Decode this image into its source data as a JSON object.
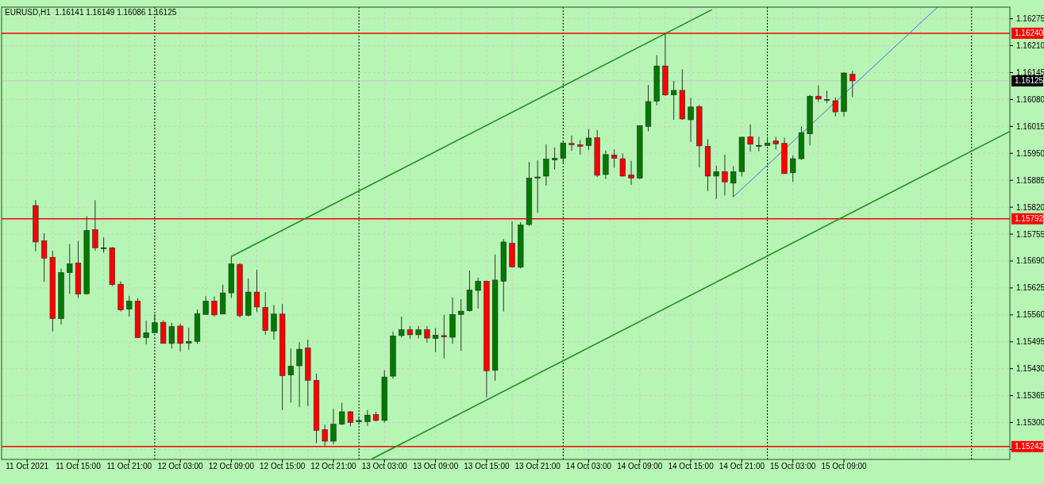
{
  "chart_data": {
    "type": "candlestick",
    "title": "EURUSD,H1  1.16141 1.16149 1.16086 1.16125",
    "x": [
      "2021-10-11T10:00",
      "2021-10-11T11:00",
      "2021-10-11T12:00",
      "2021-10-11T13:00",
      "2021-10-11T14:00",
      "2021-10-11T15:00",
      "2021-10-11T16:00",
      "2021-10-11T17:00",
      "2021-10-11T18:00",
      "2021-10-11T19:00",
      "2021-10-11T20:00",
      "2021-10-11T21:00",
      "2021-10-11T22:00",
      "2021-10-11T23:00",
      "2021-10-12T00:00",
      "2021-10-12T01:00",
      "2021-10-12T02:00",
      "2021-10-12T03:00",
      "2021-10-12T04:00",
      "2021-10-12T05:00",
      "2021-10-12T06:00",
      "2021-10-12T07:00",
      "2021-10-12T08:00",
      "2021-10-12T09:00",
      "2021-10-12T10:00",
      "2021-10-12T11:00",
      "2021-10-12T12:00",
      "2021-10-12T13:00",
      "2021-10-12T14:00",
      "2021-10-12T15:00",
      "2021-10-12T16:00",
      "2021-10-12T17:00",
      "2021-10-12T18:00",
      "2021-10-12T19:00",
      "2021-10-12T20:00",
      "2021-10-12T21:00",
      "2021-10-12T22:00",
      "2021-10-12T23:00",
      "2021-10-13T00:00",
      "2021-10-13T01:00",
      "2021-10-13T02:00",
      "2021-10-13T03:00",
      "2021-10-13T04:00",
      "2021-10-13T05:00",
      "2021-10-13T06:00",
      "2021-10-13T07:00",
      "2021-10-13T08:00",
      "2021-10-13T09:00",
      "2021-10-13T10:00",
      "2021-10-13T11:00",
      "2021-10-13T12:00",
      "2021-10-13T13:00",
      "2021-10-13T14:00",
      "2021-10-13T15:00",
      "2021-10-13T16:00",
      "2021-10-13T17:00",
      "2021-10-13T18:00",
      "2021-10-13T19:00",
      "2021-10-13T20:00",
      "2021-10-13T21:00",
      "2021-10-13T22:00",
      "2021-10-13T23:00",
      "2021-10-14T00:00",
      "2021-10-14T01:00",
      "2021-10-14T02:00",
      "2021-10-14T03:00",
      "2021-10-14T04:00",
      "2021-10-14T05:00",
      "2021-10-14T06:00",
      "2021-10-14T07:00",
      "2021-10-14T08:00",
      "2021-10-14T09:00",
      "2021-10-14T10:00",
      "2021-10-14T11:00",
      "2021-10-14T12:00",
      "2021-10-14T13:00",
      "2021-10-14T14:00",
      "2021-10-14T15:00",
      "2021-10-14T16:00",
      "2021-10-14T17:00",
      "2021-10-14T18:00",
      "2021-10-14T19:00",
      "2021-10-14T20:00",
      "2021-10-14T21:00",
      "2021-10-14T22:00",
      "2021-10-14T23:00",
      "2021-10-15T00:00",
      "2021-10-15T01:00",
      "2021-10-15T02:00",
      "2021-10-15T03:00",
      "2021-10-15T04:00",
      "2021-10-15T05:00",
      "2021-10-15T06:00",
      "2021-10-15T07:00",
      "2021-10-15T08:00",
      "2021-10-15T09:00",
      "2021-10-15T10:00"
    ],
    "ohlc": [
      [
        1.15824,
        1.15837,
        1.15713,
        1.15736
      ],
      [
        1.15739,
        1.15757,
        1.1564,
        1.15697
      ],
      [
        1.15699,
        1.15715,
        1.1552,
        1.15551
      ],
      [
        1.15551,
        1.15672,
        1.15537,
        1.15662
      ],
      [
        1.15662,
        1.15731,
        1.15611,
        1.15683
      ],
      [
        1.15685,
        1.15739,
        1.15601,
        1.1561
      ],
      [
        1.15611,
        1.15798,
        1.15609,
        1.15764
      ],
      [
        1.15766,
        1.15837,
        1.15715,
        1.15722
      ],
      [
        1.15722,
        1.15747,
        1.1571,
        1.15722
      ],
      [
        1.15722,
        1.15724,
        1.1563,
        1.15633
      ],
      [
        1.15634,
        1.15641,
        1.15568,
        1.15572
      ],
      [
        1.15574,
        1.15606,
        1.15556,
        1.15593
      ],
      [
        1.15593,
        1.156,
        1.15505,
        1.15505
      ],
      [
        1.15505,
        1.15546,
        1.15489,
        1.15517
      ],
      [
        1.15517,
        1.15562,
        1.15517,
        1.15541
      ],
      [
        1.15542,
        1.15547,
        1.15491,
        1.15491
      ],
      [
        1.15491,
        1.15541,
        1.15479,
        1.15532
      ],
      [
        1.15533,
        1.15539,
        1.15471,
        1.15491
      ],
      [
        1.15492,
        1.15529,
        1.15476,
        1.15496
      ],
      [
        1.15496,
        1.15573,
        1.1549,
        1.15563
      ],
      [
        1.15561,
        1.15605,
        1.15561,
        1.15593
      ],
      [
        1.15593,
        1.15604,
        1.15556,
        1.1556
      ],
      [
        1.15562,
        1.15633,
        1.15562,
        1.15613
      ],
      [
        1.15613,
        1.15701,
        1.15601,
        1.15683
      ],
      [
        1.15682,
        1.15685,
        1.15554,
        1.15558
      ],
      [
        1.15559,
        1.15648,
        1.15556,
        1.15615
      ],
      [
        1.15615,
        1.15669,
        1.15567,
        1.15579
      ],
      [
        1.15578,
        1.15615,
        1.15512,
        1.15522
      ],
      [
        1.15521,
        1.15584,
        1.155,
        1.15562
      ],
      [
        1.15562,
        1.15586,
        1.1533,
        1.15413
      ],
      [
        1.15415,
        1.15479,
        1.15348,
        1.15436
      ],
      [
        1.15437,
        1.15494,
        1.15337,
        1.15477
      ],
      [
        1.1548,
        1.155,
        1.1534,
        1.15402
      ],
      [
        1.15402,
        1.15418,
        1.1525,
        1.15281
      ],
      [
        1.15283,
        1.15295,
        1.15244,
        1.15255
      ],
      [
        1.15255,
        1.15333,
        1.15247,
        1.15296
      ],
      [
        1.15296,
        1.15348,
        1.15294,
        1.15326
      ],
      [
        1.15326,
        1.15328,
        1.15291,
        1.153
      ],
      [
        1.15302,
        1.15314,
        1.15299,
        1.15305
      ],
      [
        1.15302,
        1.1533,
        1.15292,
        1.15318
      ],
      [
        1.15319,
        1.15326,
        1.15303,
        1.15305
      ],
      [
        1.15305,
        1.15426,
        1.153,
        1.1541
      ],
      [
        1.15412,
        1.1552,
        1.15406,
        1.15509
      ],
      [
        1.1551,
        1.15556,
        1.15505,
        1.15524
      ],
      [
        1.15524,
        1.15533,
        1.15502,
        1.15512
      ],
      [
        1.15512,
        1.15533,
        1.15503,
        1.15524
      ],
      [
        1.15524,
        1.15533,
        1.15493,
        1.15504
      ],
      [
        1.15503,
        1.15528,
        1.1547,
        1.15511
      ],
      [
        1.1551,
        1.1556,
        1.15455,
        1.15507
      ],
      [
        1.15506,
        1.15602,
        1.1549,
        1.15561
      ],
      [
        1.15561,
        1.15598,
        1.15473,
        1.15569
      ],
      [
        1.1557,
        1.15667,
        1.15568,
        1.1562
      ],
      [
        1.15619,
        1.1565,
        1.15575,
        1.15641
      ],
      [
        1.15641,
        1.15643,
        1.15361,
        1.15425
      ],
      [
        1.15426,
        1.15706,
        1.15401,
        1.15644
      ],
      [
        1.15641,
        1.15743,
        1.15568,
        1.15736
      ],
      [
        1.15733,
        1.15786,
        1.15674,
        1.15676
      ],
      [
        1.15675,
        1.15784,
        1.15672,
        1.15777
      ],
      [
        1.15778,
        1.15929,
        1.15775,
        1.1589
      ],
      [
        1.1589,
        1.15933,
        1.15807,
        1.15893
      ],
      [
        1.15895,
        1.15972,
        1.15872,
        1.15936
      ],
      [
        1.15934,
        1.15964,
        1.15911,
        1.15938
      ],
      [
        1.15938,
        1.1598,
        1.15927,
        1.15975
      ],
      [
        1.15974,
        1.15993,
        1.15956,
        1.15971
      ],
      [
        1.15971,
        1.15982,
        1.15947,
        1.15967
      ],
      [
        1.15969,
        1.16009,
        1.15958,
        1.15987
      ],
      [
        1.15988,
        1.16006,
        1.15893,
        1.15897
      ],
      [
        1.15899,
        1.15957,
        1.15888,
        1.15947
      ],
      [
        1.15946,
        1.1596,
        1.15915,
        1.15938
      ],
      [
        1.15937,
        1.1595,
        1.15894,
        1.15895
      ],
      [
        1.15898,
        1.15932,
        1.15874,
        1.1589
      ],
      [
        1.1589,
        1.16018,
        1.15888,
        1.16017
      ],
      [
        1.16015,
        1.16115,
        1.16003,
        1.16075
      ],
      [
        1.16076,
        1.16187,
        1.16066,
        1.16161
      ],
      [
        1.16161,
        1.1624,
        1.16089,
        1.16091
      ],
      [
        1.16091,
        1.16125,
        1.16031,
        1.16102
      ],
      [
        1.16102,
        1.16153,
        1.16031,
        1.16033
      ],
      [
        1.16031,
        1.16084,
        1.15978,
        1.16062
      ],
      [
        1.16063,
        1.16067,
        1.15916,
        1.15968
      ],
      [
        1.15967,
        1.15984,
        1.15859,
        1.15895
      ],
      [
        1.15895,
        1.1592,
        1.1584,
        1.15906
      ],
      [
        1.15906,
        1.15947,
        1.15848,
        1.15881
      ],
      [
        1.15878,
        1.15919,
        1.15845,
        1.15906
      ],
      [
        1.15906,
        1.1599,
        1.15894,
        1.15989
      ],
      [
        1.1599,
        1.1602,
        1.15954,
        1.15972
      ],
      [
        1.15969,
        1.1599,
        1.15955,
        1.15969
      ],
      [
        1.15969,
        1.1599,
        1.15969,
        1.15975
      ],
      [
        1.1598,
        1.1599,
        1.15959,
        1.15973
      ],
      [
        1.15974,
        1.15988,
        1.15901,
        1.15901
      ],
      [
        1.15903,
        1.15945,
        1.15881,
        1.15937
      ],
      [
        1.15937,
        1.16015,
        1.15934,
        1.16
      ],
      [
        1.15997,
        1.16091,
        1.15969,
        1.16088
      ],
      [
        1.16088,
        1.16114,
        1.16074,
        1.16081
      ],
      [
        1.1608,
        1.16101,
        1.16071,
        1.1608
      ],
      [
        1.16077,
        1.16085,
        1.16039,
        1.1605
      ],
      [
        1.16051,
        1.16146,
        1.16039,
        1.16144
      ],
      [
        1.16141,
        1.16149,
        1.16086,
        1.16125
      ]
    ],
    "colors": [
      "#ff0000",
      "#ff0000",
      "#ff0000",
      "#007a00",
      "#007a00",
      "#ff0000",
      "#007a00",
      "#ff0000",
      "#000000",
      "#ff0000",
      "#ff0000",
      "#007a00",
      "#ff0000",
      "#007a00",
      "#007a00",
      "#ff0000",
      "#007a00",
      "#ff0000",
      "#007a00",
      "#007a00",
      "#007a00",
      "#ff0000",
      "#007a00",
      "#007a00",
      "#ff0000",
      "#007a00",
      "#ff0000",
      "#ff0000",
      "#007a00",
      "#ff0000",
      "#007a00",
      "#007a00",
      "#ff0000",
      "#ff0000",
      "#ff0000",
      "#007a00",
      "#007a00",
      "#ff0000",
      "#007a00",
      "#007a00",
      "#ff0000",
      "#007a00",
      "#007a00",
      "#007a00",
      "#ff0000",
      "#007a00",
      "#ff0000",
      "#007a00",
      "#ff0000",
      "#007a00",
      "#007a00",
      "#007a00",
      "#007a00",
      "#ff0000",
      "#007a00",
      "#007a00",
      "#ff0000",
      "#007a00",
      "#007a00",
      "#007a00",
      "#007a00",
      "#007a00",
      "#007a00",
      "#ff0000",
      "#ff0000",
      "#007a00",
      "#ff0000",
      "#007a00",
      "#ff0000",
      "#ff0000",
      "#ff0000",
      "#007a00",
      "#007a00",
      "#007a00",
      "#ff0000",
      "#007a00",
      "#ff0000",
      "#007a00",
      "#ff0000",
      "#ff0000",
      "#007a00",
      "#ff0000",
      "#007a00",
      "#007a00",
      "#ff0000",
      "#000000",
      "#007a00",
      "#ff0000",
      "#ff0000",
      "#007a00",
      "#007a00",
      "#007a00",
      "#ff0000",
      "#000000",
      "#ff0000",
      "#007a00",
      "#ff0000"
    ],
    "series": [
      {
        "type": "line",
        "color": "#1e8f1e",
        "x": [
          "2021-10-12T09:00",
          "2021-10-14T17:30"
        ],
        "values": [
          1.15701,
          1.16297
        ]
      },
      {
        "type": "line",
        "color": "#1e8f1e",
        "x": [
          "2021-10-13T01:30",
          "2021-10-16T04:30"
        ],
        "values": [
          1.15212,
          1.16003
        ]
      },
      {
        "type": "line",
        "color": "#4a6fe0",
        "x": [
          "2021-10-14T20:00",
          "2021-10-15T20:00"
        ],
        "values": [
          1.15845,
          1.16303
        ]
      }
    ],
    "xlim": [
      "2021-10-11T06:00",
      "2021-10-16T04:30"
    ],
    "ylim": [
      1.15211,
      1.16303
    ],
    "yticks": [
      1.16275,
      {
        "value": 1.1621,
        "label": "1.16210"
      },
      1.16145,
      {
        "value": 1.1608,
        "label": "1.16080"
      },
      1.16015,
      {
        "value": 1.1595,
        "label": "1.15950"
      },
      1.15885,
      {
        "value": 1.1582,
        "label": "1.15820"
      },
      1.15755,
      {
        "value": 1.1569,
        "label": "1.15690"
      },
      1.15625,
      {
        "value": 1.1556,
        "label": "1.15560"
      },
      1.15495,
      {
        "value": 1.1543,
        "label": "1.15430"
      },
      1.15365,
      {
        "value": 1.153,
        "label": "1.15300"
      },
      {
        "value": 1.15235,
        "label": null
      }
    ],
    "xticks": [
      {
        "value": "2021-10-11T09:00",
        "label": "11 Oct 2021"
      },
      {
        "value": "2021-10-11T12:00",
        "label": null
      },
      {
        "value": "2021-10-11T15:00",
        "label": "11 Oct 15:00"
      },
      {
        "value": "2021-10-11T18:00",
        "label": null
      },
      {
        "value": "2021-10-11T21:00",
        "label": "11 Oct 21:00"
      },
      {
        "value": "2021-10-12T03:00",
        "label": "12 Oct 03:00"
      },
      {
        "value": "2021-10-12T06:00",
        "label": null
      },
      {
        "value": "2021-10-12T09:00",
        "label": "12 Oct 09:00"
      },
      {
        "value": "2021-10-12T12:00",
        "label": null
      },
      {
        "value": "2021-10-12T15:00",
        "label": "12 Oct 15:00"
      },
      {
        "value": "2021-10-12T18:00",
        "label": null
      },
      {
        "value": "2021-10-12T21:00",
        "label": "12 Oct 21:00"
      },
      {
        "value": "2021-10-13T03:00",
        "label": "13 Oct 03:00"
      },
      {
        "value": "2021-10-13T06:00",
        "label": null
      },
      {
        "value": "2021-10-13T09:00",
        "label": "13 Oct 09:00"
      },
      {
        "value": "2021-10-13T12:00",
        "label": null
      },
      {
        "value": "2021-10-13T15:00",
        "label": "13 Oct 15:00"
      },
      {
        "value": "2021-10-13T18:00",
        "label": null
      },
      {
        "value": "2021-10-13T21:00",
        "label": "13 Oct 21:00"
      },
      {
        "value": "2021-10-14T03:00",
        "label": "14 Oct 03:00"
      },
      {
        "value": "2021-10-14T06:00",
        "label": null
      },
      {
        "value": "2021-10-14T09:00",
        "label": "14 Oct 09:00"
      },
      {
        "value": "2021-10-14T12:00",
        "label": null
      },
      {
        "value": "2021-10-14T15:00",
        "label": "14 Oct 15:00"
      },
      {
        "value": "2021-10-14T18:00",
        "label": null
      },
      {
        "value": "2021-10-14T21:00",
        "label": "14 Oct 21:00"
      },
      {
        "value": "2021-10-15T03:00",
        "label": "15 Oct 03:00"
      },
      {
        "value": "2021-10-15T06:00",
        "label": null
      },
      {
        "value": "2021-10-15T09:00",
        "label": "15 Oct 09:00"
      },
      {
        "value": "2021-10-15T12:00",
        "label": null
      },
      {
        "value": "2021-10-15T15:00",
        "label": null
      },
      {
        "value": "2021-10-15T18:00",
        "label": null
      },
      {
        "value": "2021-10-15T21:00",
        "label": null
      },
      {
        "value": "2021-10-16T03:00",
        "label": null
      }
    ],
    "grid": true,
    "ref_lines": [
      {
        "axis": "y",
        "value": 1.1624,
        "label": "1.16240",
        "color": "#ff0000"
      },
      {
        "axis": "y",
        "value": 1.15792,
        "label": "1.15792",
        "color": "#ff0000"
      },
      {
        "axis": "y",
        "value": 1.15242,
        "label": "1.15242",
        "color": "#ff0000"
      },
      {
        "axis": "y",
        "value": 1.16125,
        "label": "1.16125",
        "color": "#c4c4c4"
      },
      {
        "axis": "x",
        "value": "2021-10-12T00:00",
        "color": "#000000",
        "line_style": "dotted"
      },
      {
        "axis": "x",
        "value": "2021-10-13T00:00",
        "color": "#000000",
        "line_style": "dotted"
      },
      {
        "axis": "x",
        "value": "2021-10-14T00:00",
        "color": "#000000",
        "line_style": "dotted"
      },
      {
        "axis": "x",
        "value": "2021-10-15T00:00",
        "color": "#000000",
        "line_style": "dotted"
      },
      {
        "axis": "x",
        "value": "2021-10-16T00:00",
        "color": "#000000",
        "line_style": "dotted"
      }
    ]
  }
}
